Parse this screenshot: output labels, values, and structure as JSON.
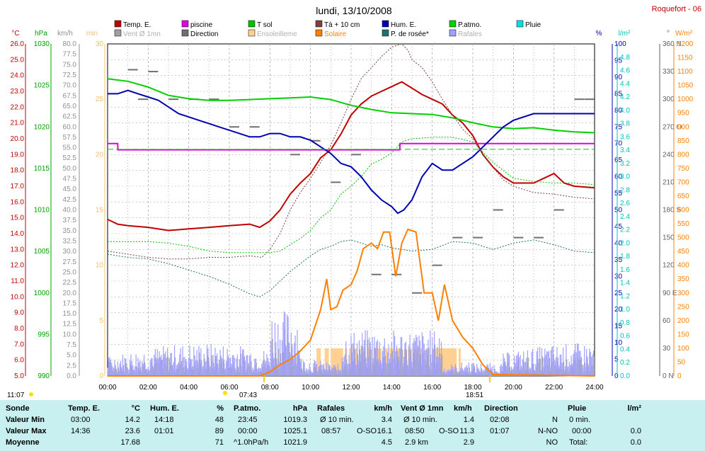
{
  "header": {
    "title": "lundi, 13/10/2008",
    "station": "Roquefort - 06"
  },
  "legend": [
    {
      "label": "Temp. E.",
      "color": "#c00000"
    },
    {
      "label": "piscine",
      "color": "#e000e0"
    },
    {
      "label": "T sol",
      "color": "#00c000"
    },
    {
      "label": "Tà + 10 cm",
      "color": "#804040"
    },
    {
      "label": "Hum. E.",
      "color": "#0000b0"
    },
    {
      "label": "P.atmo.",
      "color": "#00d000"
    },
    {
      "label": "Pluie",
      "color": "#00e0e0"
    },
    {
      "label": "Vent Ø 1mn",
      "color": "#a0a0a0"
    },
    {
      "label": "Direction",
      "color": "#707070"
    },
    {
      "label": "Ensoleilleme",
      "color": "#ffd090"
    },
    {
      "label": "Solaire",
      "color": "#ff8000"
    },
    {
      "label": "P. de rosée*",
      "color": "#207070"
    },
    {
      "label": "Rafales",
      "color": "#a0a0ff"
    }
  ],
  "chart_data": {
    "type": "line",
    "title": "lundi, 13/10/2008",
    "x_ticks": [
      "00:00",
      "02:00",
      "04:00",
      "06:00",
      "08:00",
      "10:00",
      "12:00",
      "14:00",
      "16:00",
      "18:00",
      "20:00",
      "22:00",
      "24:00"
    ],
    "axes": {
      "temp": {
        "unit": "°C",
        "range": [
          5,
          26
        ],
        "ticks": [
          "5.0",
          "6.0",
          "7.0",
          "8.0",
          "9.0",
          "10.0",
          "11.0",
          "12.0",
          "13.0",
          "14.0",
          "15.0",
          "16.0",
          "17.0",
          "18.0",
          "19.0",
          "20.0",
          "21.0",
          "22.0",
          "23.0",
          "24.0",
          "25.0",
          "26.0"
        ]
      },
      "pressure": {
        "unit": "hPa",
        "range": [
          990,
          1030
        ],
        "ticks": [
          "990",
          "995",
          "1000",
          "1005",
          "1010",
          "1015",
          "1020",
          "1025",
          "1030"
        ]
      },
      "wind": {
        "unit": "km/h",
        "range": [
          0,
          80
        ],
        "ticks": [
          "0.0",
          "2.5",
          "5.0",
          "7.5",
          "10.0",
          "12.5",
          "15.0",
          "17.5",
          "20.0",
          "22.5",
          "25.0",
          "27.5",
          "30.0",
          "32.5",
          "35.0",
          "37.5",
          "40.0",
          "42.5",
          "45.0",
          "47.5",
          "50.0",
          "52.5",
          "55.0",
          "57.5",
          "60.0",
          "62.5",
          "65.0",
          "67.5",
          "70.0",
          "72.5",
          "75.0",
          "77.5",
          "80.0"
        ]
      },
      "sunshine": {
        "unit": "min",
        "range": [
          0,
          30
        ],
        "ticks": [
          "0",
          "5",
          "10",
          "15",
          "20",
          "25",
          "30"
        ]
      },
      "humidity": {
        "unit": "%",
        "range": [
          0,
          100
        ],
        "ticks": [
          "0",
          "5",
          "10",
          "15",
          "20",
          "25",
          "30",
          "35",
          "40",
          "45",
          "50",
          "55",
          "60",
          "65",
          "70",
          "75",
          "80",
          "85",
          "90",
          "95",
          "100"
        ]
      },
      "rain": {
        "unit": "l/m²",
        "range": [
          0,
          5
        ],
        "ticks": [
          "0.0",
          "0.2",
          "0.4",
          "0.6",
          "0.8",
          "1.0",
          "1.2",
          "1.4",
          "1.6",
          "1.8",
          "2.0",
          "2.2",
          "2.4",
          "2.6",
          "2.8",
          "3.0",
          "3.2",
          "3.4",
          "3.6",
          "3.8",
          "4.0",
          "4.2",
          "4.4",
          "4.6",
          "4.8"
        ]
      },
      "direction": {
        "unit": "°",
        "range": [
          0,
          360
        ],
        "ticks": [
          "0 N",
          "30",
          "60",
          "90 E",
          "120",
          "150",
          "180 S",
          "210",
          "240",
          "270 O",
          "300",
          "330",
          "360 N"
        ]
      },
      "solar": {
        "unit": "W/m²",
        "range": [
          0,
          1200
        ],
        "ticks": [
          "0",
          "50",
          "100",
          "150",
          "200",
          "250",
          "300",
          "350",
          "400",
          "450",
          "500",
          "550",
          "600",
          "650",
          "700",
          "750",
          "800",
          "850",
          "900",
          "950",
          "1000",
          "1050",
          "1100",
          "1150",
          "1200"
        ]
      }
    },
    "series": [
      {
        "name": "Temp. E.",
        "axis": "temp",
        "color": "#c00000",
        "x": [
          0,
          0.5,
          1,
          2,
          3,
          4,
          5,
          6,
          7,
          7.5,
          8,
          8.5,
          9,
          9.5,
          10,
          10.5,
          11,
          11.5,
          12,
          12.5,
          13,
          13.5,
          14,
          14.5,
          15,
          15.5,
          16,
          16.5,
          17,
          17.5,
          18,
          18.5,
          19,
          19.5,
          20,
          21,
          22,
          22.5,
          23,
          24
        ],
        "y": [
          14.9,
          14.6,
          14.5,
          14.4,
          14.2,
          14.3,
          14.4,
          14.5,
          14.6,
          14.4,
          14.8,
          15.5,
          16.5,
          17.2,
          17.8,
          18.8,
          19.3,
          20.3,
          21.5,
          22.2,
          22.7,
          23.0,
          23.3,
          23.6,
          23.2,
          22.8,
          22.5,
          22.2,
          21.5,
          21.0,
          20.2,
          19.0,
          18.2,
          17.6,
          17.2,
          17.2,
          17.8,
          17.2,
          17.0,
          16.9
        ]
      },
      {
        "name": "piscine",
        "axis": "temp",
        "color": "#e000e0",
        "x": [
          0,
          0.5,
          0.51,
          14.4,
          14.41,
          24
        ],
        "y": [
          19.7,
          19.7,
          19.3,
          19.3,
          19.7,
          19.7
        ]
      },
      {
        "name": "T sol",
        "axis": "pressure",
        "color": "#00d000",
        "x": [
          0,
          1,
          2,
          3,
          4,
          5,
          6,
          7,
          8,
          9,
          10,
          11,
          12,
          13,
          14,
          15,
          16,
          17,
          18,
          19,
          20,
          21,
          22,
          23,
          24
        ],
        "y": [
          1025.8,
          1025.5,
          1024.8,
          1023.8,
          1023.4,
          1023.2,
          1023.2,
          1023.3,
          1023.4,
          1023.5,
          1023.6,
          1023.3,
          1022.6,
          1022.1,
          1021.7,
          1021.6,
          1021.5,
          1021.1,
          1020.5,
          1020.0,
          1019.8,
          1019.9,
          1019.6,
          1019.4,
          1019.3
        ]
      },
      {
        "name": "Hum. E.",
        "axis": "humidity",
        "color": "#0000b0",
        "x": [
          0,
          0.5,
          1,
          1.5,
          2,
          2.5,
          3,
          3.5,
          4,
          4.5,
          5,
          5.5,
          6,
          6.5,
          7,
          7.5,
          8,
          8.5,
          9,
          9.5,
          10,
          10.5,
          11,
          11.5,
          12,
          12.5,
          13,
          13.5,
          14,
          14.3,
          14.6,
          15,
          15.5,
          16,
          16.5,
          17,
          17.5,
          18,
          18.5,
          19,
          19.5,
          20,
          21,
          22,
          23,
          24
        ],
        "y": [
          85,
          85,
          86,
          85,
          84,
          83,
          81,
          79,
          78,
          77,
          76,
          75,
          74,
          73,
          72,
          72,
          73,
          73,
          72,
          72,
          71,
          69,
          67,
          64,
          63,
          60,
          56,
          53,
          51,
          49,
          50,
          53,
          60,
          64,
          62,
          62,
          64,
          66,
          69,
          72,
          75,
          77,
          79,
          79,
          79,
          79
        ]
      },
      {
        "name": "P.atmo.",
        "axis": "pressure",
        "color": "#00d000",
        "x": [
          0,
          24
        ],
        "y": [
          1017.3,
          1017.3
        ]
      },
      {
        "name": "Tà + 10 cm",
        "axis": "temp",
        "color": "#804040",
        "dash": true,
        "x": [
          0,
          1,
          2,
          3,
          4,
          5,
          6,
          7,
          7.6,
          8,
          8.5,
          9,
          9.5,
          10,
          10.5,
          11,
          11.5,
          12,
          12.5,
          13,
          13.5,
          14,
          14.5,
          14.8,
          15,
          15.5,
          16,
          16.5,
          17,
          17.5,
          18,
          18.5,
          19,
          19.5,
          20,
          21,
          22,
          23,
          24
        ],
        "y": [
          12.9,
          12.7,
          12.5,
          12.4,
          12.4,
          12.5,
          12.5,
          12.6,
          12.5,
          13,
          14,
          15.5,
          16.6,
          17.5,
          18.5,
          19.6,
          21.0,
          22.5,
          23.8,
          24.5,
          25.2,
          25.8,
          26,
          25.6,
          25,
          24.5,
          23.6,
          22.5,
          21.5,
          20.6,
          20,
          19,
          18.2,
          17.4,
          17,
          16.6,
          16.5,
          16.3,
          16.2
        ]
      },
      {
        "name": "P. de rosée*",
        "axis": "temp",
        "color": "#207070",
        "dash": true,
        "x": [
          0,
          1,
          2,
          3,
          4,
          5,
          6,
          7,
          7.5,
          8,
          8.5,
          9,
          9.5,
          10,
          10.5,
          11,
          11.5,
          12,
          12.5,
          13,
          13.5,
          14,
          15,
          16,
          17,
          18,
          19,
          20,
          21,
          22,
          23,
          24
        ],
        "y": [
          12.7,
          12.5,
          12.4,
          12.1,
          11.7,
          11.3,
          10.8,
          10.2,
          10,
          10.4,
          11,
          11.6,
          12.1,
          12.6,
          13,
          13.2,
          13.5,
          13.6,
          13.4,
          13.2,
          13.3,
          13.1,
          12.9,
          13,
          13.5,
          13.4,
          13.0,
          13.4,
          13.6,
          13.3,
          12.9,
          12.8
        ]
      },
      {
        "name": "Solaire",
        "axis": "solar",
        "color": "#ff8000",
        "x": [
          0,
          7.5,
          8,
          8.5,
          9,
          9.5,
          10,
          10.5,
          10.8,
          11,
          11.3,
          11.6,
          12,
          12.3,
          12.6,
          13,
          13.3,
          13.6,
          13.9,
          14.2,
          14.5,
          14.8,
          15.2,
          15.6,
          16,
          16.3,
          16.6,
          17,
          17.5,
          18,
          18.5,
          19,
          24
        ],
        "y": [
          0,
          0,
          15,
          40,
          60,
          90,
          130,
          240,
          350,
          240,
          250,
          310,
          330,
          380,
          460,
          480,
          460,
          520,
          520,
          360,
          480,
          530,
          520,
          300,
          300,
          200,
          330,
          200,
          140,
          100,
          40,
          5,
          0
        ]
      },
      {
        "name": "T sol",
        "axis": "temp",
        "color": "#00c000",
        "dash": true,
        "x": [
          0,
          1,
          2,
          3,
          4,
          5,
          6,
          7,
          7.5,
          8,
          8.5,
          9,
          9.5,
          10,
          10.5,
          11,
          11.5,
          12,
          12.5,
          13,
          13.5,
          14,
          14.5,
          15,
          16,
          17,
          18,
          19,
          20,
          21,
          22,
          23,
          24
        ],
        "y": [
          13.5,
          13.5,
          13.5,
          13.4,
          13.2,
          12.9,
          12.8,
          12.8,
          12.8,
          12.8,
          12.9,
          13.3,
          13.7,
          14.2,
          15,
          15.5,
          16.5,
          17,
          17.6,
          18.4,
          18.7,
          19.1,
          19.8,
          20,
          20.1,
          20.1,
          19.8,
          18.5,
          17.5,
          17.3,
          17.2,
          17.2,
          17.1
        ]
      }
    ],
    "bars": [
      {
        "name": "Rafales",
        "axis": "wind",
        "color": "#a0a0ff"
      },
      {
        "name": "Vent Ø 1mn",
        "axis": "wind",
        "color": "#a0a0a0"
      },
      {
        "name": "Ensoleilleme",
        "axis": "sunshine",
        "color": "#ffd090"
      }
    ],
    "markers": {
      "sunrise": "07:43",
      "sunset": "18:51",
      "moonrise": "11:07",
      "moonset": "18:51"
    }
  },
  "stats": {
    "headers": [
      {
        "label": "Sonde",
        "unit": ""
      },
      {
        "label": "Temp. E.",
        "unit": "°C"
      },
      {
        "label": "Hum. E.",
        "unit": "%"
      },
      {
        "label": "P.atmo.",
        "unit": "hPa"
      },
      {
        "label": "Rafales",
        "unit": "km/h"
      },
      {
        "label": "Vent Ø 1mn",
        "unit": "km/h"
      },
      {
        "label": "Direction",
        "unit": ""
      },
      {
        "label": "Pluie",
        "unit": "l/m²"
      }
    ],
    "rows": [
      {
        "label": "Valeur Min",
        "temp_t": "03:00",
        "temp_v": "14.2",
        "hum_t": "14:18",
        "hum_v": "48",
        "pres_t": "23:45",
        "pres_v": "1019.3",
        "gust_t": "Ø 10 min.",
        "gust_d": "",
        "gust_v": "3.4",
        "wind_t": "Ø 10 min.",
        "wind_d": "",
        "wind_v": "1.4",
        "dir_t": "02:08",
        "dir_v": "N",
        "rain_t": "0 min.",
        "rain_v": ""
      },
      {
        "label": "Valeur Max",
        "temp_t": "14:36",
        "temp_v": "23.6",
        "hum_t": "01:01",
        "hum_v": "89",
        "pres_t": "00:00",
        "pres_v": "1025.1",
        "gust_t": "08:57",
        "gust_d": "O-SO",
        "gust_v": "16.1",
        "wind_t": "08:50",
        "wind_d": "O-SO",
        "wind_v": "11.3",
        "dir_t": "01:07",
        "dir_v": "N-NO",
        "rain_t": "00:00",
        "rain_v": "0.0"
      },
      {
        "label": "Moyenne",
        "temp_t": "",
        "temp_v": "17.68",
        "hum_t": "",
        "hum_v": "71",
        "pres_t": "^1.0hPa/h",
        "pres_v": "1021.9",
        "gust_t": "Ø 10 min.",
        "gust_d": "",
        "gust_v": "4.5",
        "wind_t": "2.9 km",
        "wind_d": "",
        "wind_v": "2.9",
        "dir_t": "",
        "dir_v": "NO",
        "rain_t": "Total:",
        "rain_v": "0.0"
      }
    ]
  }
}
